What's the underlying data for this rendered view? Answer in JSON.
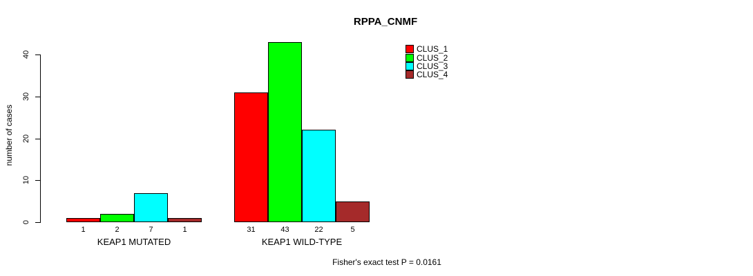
{
  "title": "RPPA_CNMF",
  "footnote": "Fisher's exact test P = 0.0161",
  "chart_data": {
    "type": "bar",
    "title": "RPPA_CNMF",
    "xlabel": "",
    "ylabel": "number of cases",
    "ylim": [
      0,
      43
    ],
    "yticks": [
      0,
      10,
      20,
      30,
      40
    ],
    "grid": false,
    "legend_position": "top-right",
    "categories": [
      "KEAP1 MUTATED",
      "KEAP1 WILD-TYPE"
    ],
    "series": [
      {
        "name": "CLUS_1",
        "color": "#ff0000",
        "values": [
          1,
          31
        ]
      },
      {
        "name": "CLUS_2",
        "color": "#00ff00",
        "values": [
          2,
          43
        ]
      },
      {
        "name": "CLUS_3",
        "color": "#00ffff",
        "values": [
          7,
          22
        ]
      },
      {
        "name": "CLUS_4",
        "color": "#a52a2a",
        "values": [
          1,
          5
        ]
      }
    ],
    "bar_value_labels": [
      [
        "1",
        "2",
        "7",
        "1"
      ],
      [
        "31",
        "43",
        "22",
        "5"
      ]
    ]
  }
}
